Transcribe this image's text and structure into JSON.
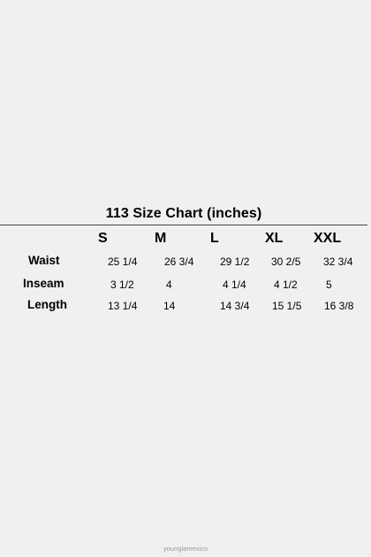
{
  "title": "113 Size Chart (inches)",
  "sizes": [
    "S",
    "M",
    "L",
    "XL",
    "XXL"
  ],
  "rows": [
    {
      "label": "Waist",
      "values": [
        "25 1/4",
        "26 3/4",
        "29 1/2",
        "30 2/5",
        "32 3/4"
      ]
    },
    {
      "label": "Inseam",
      "values": [
        "3 1/2",
        "4",
        "4 1/4",
        "4 1/2",
        "5"
      ]
    },
    {
      "label": "Length",
      "values": [
        "13 1/4",
        "14",
        "14 3/4",
        "15 1/5",
        "16 3/8"
      ]
    }
  ],
  "watermark": "younglamexico"
}
